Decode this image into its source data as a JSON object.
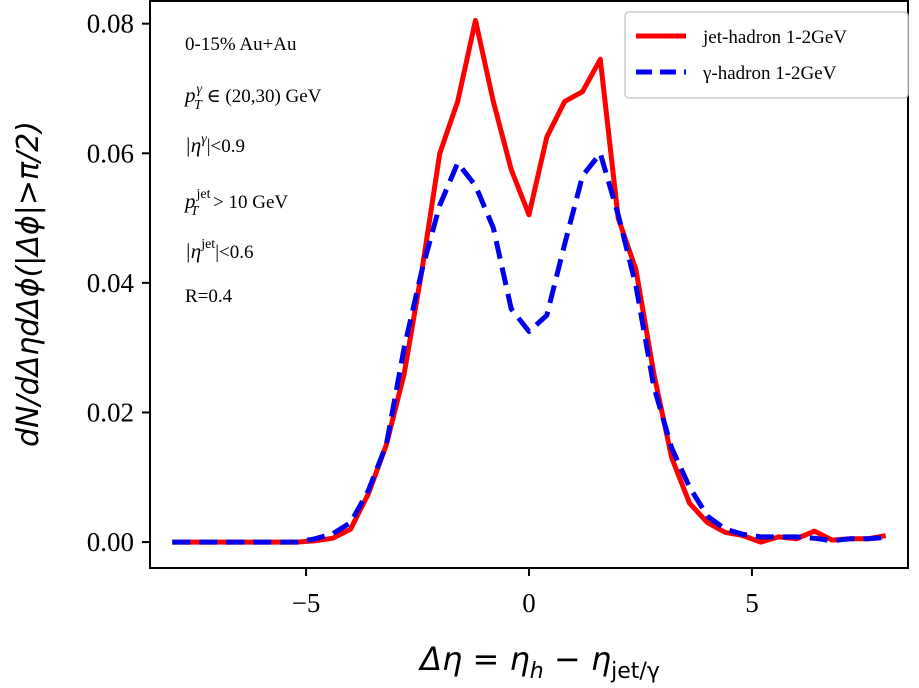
{
  "chart_data": {
    "type": "line",
    "xlabel_parts": {
      "base": "Δη = η",
      "sub1": "h",
      "mid": " − η",
      "sub2": "jet/γ"
    },
    "ylabel": "dN/dΔηdΔϕ(|Δϕ|>π/2)",
    "xlim": [
      -8.5,
      8.5
    ],
    "ylim": [
      -0.004,
      0.0835
    ],
    "xticks": [
      -5,
      0,
      5
    ],
    "xtick_labels": [
      "−5",
      "0",
      "5"
    ],
    "yticks": [
      0.0,
      0.02,
      0.04,
      0.06,
      0.08
    ],
    "ytick_labels": [
      "0.00",
      "0.02",
      "0.04",
      "0.06",
      "0.08"
    ],
    "grid": false,
    "legend_position": "top-right",
    "series": [
      {
        "name": "jet-hadron 1-2GeV",
        "color": "#ff0000",
        "dash": "solid",
        "x": [
          -8.0,
          -7.6,
          -7.2,
          -6.8,
          -6.4,
          -6.0,
          -5.6,
          -5.2,
          -4.8,
          -4.4,
          -4.0,
          -3.6,
          -3.2,
          -2.8,
          -2.4,
          -2.0,
          -1.6,
          -1.2,
          -0.8,
          -0.4,
          0.0,
          0.4,
          0.8,
          1.2,
          1.6,
          2.0,
          2.4,
          2.8,
          3.2,
          3.6,
          4.0,
          4.4,
          4.8,
          5.2,
          5.6,
          6.0,
          6.4,
          6.8,
          7.2,
          7.6,
          8.0
        ],
        "y": [
          0.0,
          0.0,
          0.0,
          0.0,
          0.0,
          0.0,
          0.0,
          0.0,
          0.0002,
          0.0006,
          0.002,
          0.0075,
          0.015,
          0.026,
          0.042,
          0.06,
          0.068,
          0.0805,
          0.068,
          0.0575,
          0.0505,
          0.0625,
          0.068,
          0.0695,
          0.0745,
          0.05,
          0.042,
          0.026,
          0.013,
          0.006,
          0.003,
          0.0015,
          0.001,
          0.0,
          0.0008,
          0.0005,
          0.0017,
          0.0003,
          0.0005,
          0.0005,
          0.001
        ]
      },
      {
        "name": "γ-hadron 1-2GeV",
        "color": "#0000ee",
        "dash": "dashed",
        "x": [
          -8.0,
          -7.6,
          -7.2,
          -6.8,
          -6.4,
          -6.0,
          -5.6,
          -5.2,
          -4.8,
          -4.4,
          -4.0,
          -3.6,
          -3.2,
          -2.8,
          -2.4,
          -2.0,
          -1.6,
          -1.2,
          -0.8,
          -0.4,
          0.0,
          0.4,
          0.8,
          1.2,
          1.6,
          2.0,
          2.4,
          2.8,
          3.2,
          3.6,
          4.0,
          4.4,
          4.8,
          5.2,
          5.6,
          6.0,
          6.4,
          6.8,
          7.2,
          7.6,
          8.0
        ],
        "y": [
          0.0,
          0.0,
          0.0,
          0.0,
          0.0,
          0.0,
          0.0,
          0.0,
          0.0005,
          0.0013,
          0.003,
          0.008,
          0.015,
          0.03,
          0.042,
          0.052,
          0.0585,
          0.055,
          0.0485,
          0.036,
          0.0325,
          0.035,
          0.046,
          0.0565,
          0.06,
          0.0505,
          0.0395,
          0.024,
          0.0145,
          0.0085,
          0.004,
          0.002,
          0.0012,
          0.0008,
          0.0008,
          0.0008,
          0.0006,
          0.0002,
          0.0005,
          0.0005,
          0.0007
        ]
      }
    ],
    "annotations": [
      {
        "id": "centrality",
        "text": "0-15% Au+Au"
      },
      {
        "id": "pt-gamma",
        "base": "p",
        "sup": "γ",
        "sub": "T",
        "rest": " ∈ (20,30) GeV"
      },
      {
        "id": "eta-gamma",
        "pre": "|η",
        "sup": "γ",
        "rest": "|<0.9"
      },
      {
        "id": "pt-jet",
        "base": "p",
        "sup": "jet",
        "sub": "T",
        "rest": " > 10 GeV"
      },
      {
        "id": "eta-jet",
        "pre": "|η",
        "sup": "jet",
        "rest": "|<0.6"
      },
      {
        "id": "radius",
        "text": "R=0.4"
      }
    ]
  }
}
